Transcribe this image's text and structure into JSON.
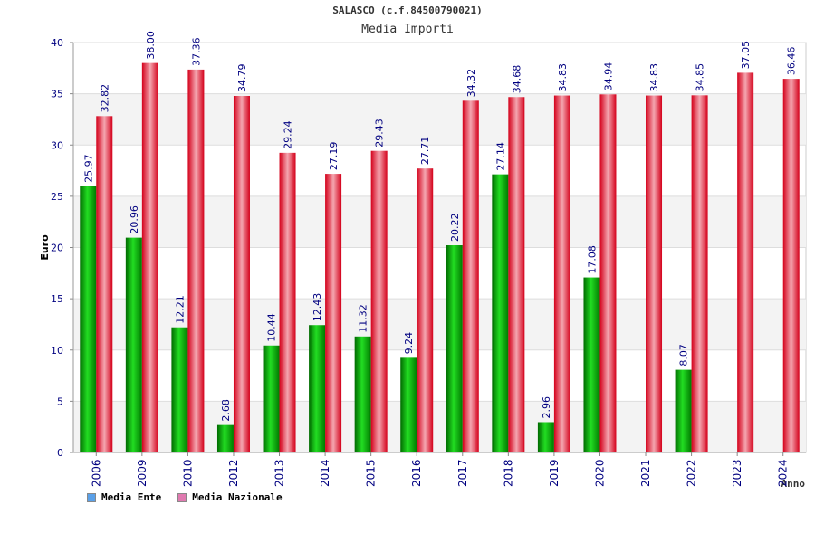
{
  "header": {
    "title": "SALASCO (c.f.84500790021)",
    "subtitle": "Media Importi"
  },
  "colors": {
    "ente": "#00b000",
    "nazionale": "#e0101f",
    "legend_ente": "#5aa0e8",
    "legend_nazionale": "#e07ab0",
    "label": "#000080"
  },
  "chart_data": {
    "type": "bar",
    "title": "Media Importi",
    "xlabel": "Anno",
    "ylabel": "Euro",
    "ylim": [
      0,
      40
    ],
    "yticks": [
      0,
      5,
      10,
      15,
      20,
      25,
      30,
      35,
      40
    ],
    "categories": [
      "2006",
      "2009",
      "2010",
      "2012",
      "2013",
      "2014",
      "2015",
      "2016",
      "2017",
      "2018",
      "2019",
      "2020",
      "2021",
      "2022",
      "2023",
      "2024"
    ],
    "series": [
      {
        "name": "Media Ente",
        "values": [
          25.97,
          20.96,
          12.21,
          2.68,
          10.44,
          12.43,
          11.32,
          9.24,
          20.22,
          27.14,
          2.96,
          17.08,
          null,
          8.07,
          null,
          null
        ],
        "labels": [
          "25.97",
          "20.96",
          "12.21",
          "2.68",
          "10.44",
          "12.43",
          "11.32",
          "9.24",
          "20.22",
          "27.14",
          "2.96",
          "17.08",
          null,
          "8.07",
          null,
          null
        ]
      },
      {
        "name": "Media Nazionale",
        "values": [
          32.82,
          38.0,
          37.36,
          34.79,
          29.24,
          27.19,
          29.43,
          27.71,
          34.32,
          34.68,
          34.83,
          34.94,
          34.83,
          34.85,
          37.05,
          36.46
        ],
        "labels": [
          "32.82",
          "38.00",
          "37.36",
          "34.79",
          "29.24",
          "27.19",
          "29.43",
          "27.71",
          "34.32",
          "34.68",
          "34.83",
          "34.94",
          "34.83",
          "34.85",
          "37.05",
          "36.46"
        ]
      }
    ],
    "legend": [
      "Media Ente",
      "Media Nazionale"
    ],
    "legend_position": "bottom-left"
  }
}
